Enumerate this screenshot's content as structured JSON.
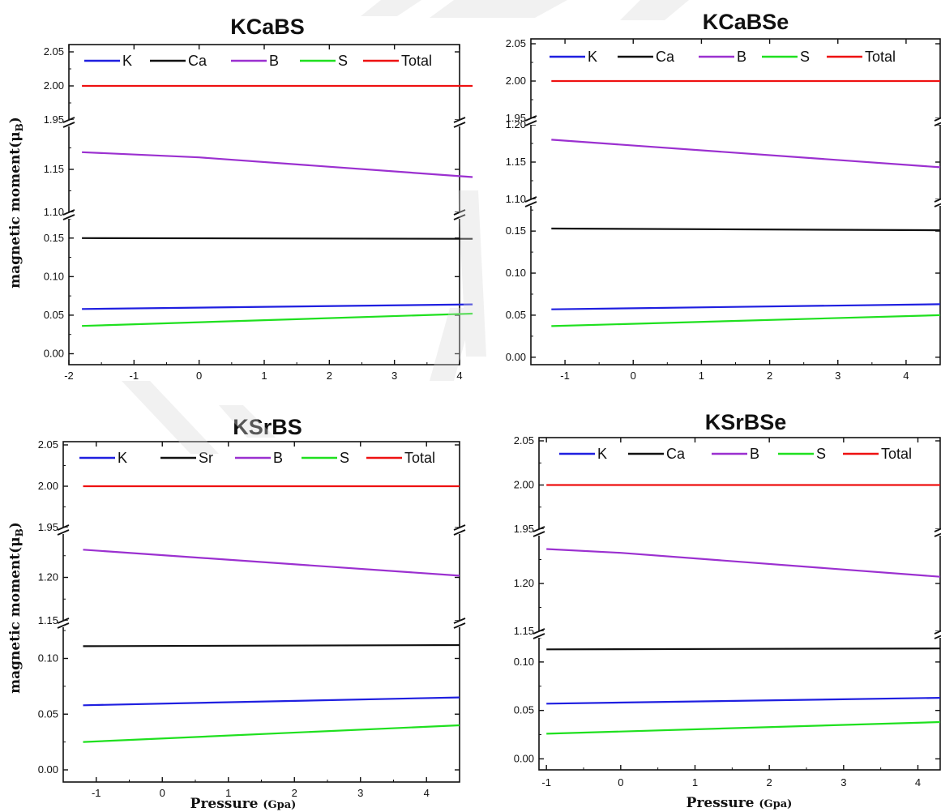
{
  "ylabel": "magnetic moment(μB)",
  "xlabel": "Pressure (Gpa)",
  "colors": {
    "K": "#1f1fe0",
    "Ca": "#111111",
    "Sr": "#111111",
    "B": "#9b30d0",
    "S": "#1fe01f",
    "Total": "#ee1111"
  },
  "chart_data": [
    {
      "type": "line",
      "title": "KCaBS",
      "xlim": [
        -2,
        4
      ],
      "xticks": [
        -2,
        -1,
        0,
        1,
        2,
        3,
        4
      ],
      "x": [
        -1.8,
        4.2
      ],
      "segments": [
        {
          "ylim": [
            1.95,
            2.05
          ],
          "ticks": [
            2.05,
            2.0,
            1.95
          ],
          "tick_labels": [
            "2.05",
            "2.00",
            "1.95"
          ]
        },
        {
          "ylim": [
            1.1,
            1.2
          ],
          "ticks": [
            1.15,
            1.1
          ],
          "tick_labels": [
            "1.15",
            "1.10"
          ]
        },
        {
          "ylim": [
            -0.01,
            0.175
          ],
          "ticks": [
            0.15,
            0.1,
            0.05,
            0.0
          ],
          "tick_labels": [
            "0.15",
            "0.10",
            "0.05",
            "0.00"
          ]
        }
      ],
      "legend": [
        "K",
        "Ca",
        "B",
        "S",
        "Total"
      ],
      "series": [
        {
          "name": "K",
          "x": [
            -1.8,
            4.2
          ],
          "values": [
            0.058,
            0.064
          ]
        },
        {
          "name": "Ca",
          "x": [
            -1.8,
            4.2
          ],
          "values": [
            0.15,
            0.149
          ]
        },
        {
          "name": "B",
          "x": [
            -1.8,
            0,
            4.2
          ],
          "values": [
            1.17,
            1.164,
            1.141
          ]
        },
        {
          "name": "S",
          "x": [
            -1.8,
            4.2
          ],
          "values": [
            0.036,
            0.052
          ]
        },
        {
          "name": "Total",
          "x": [
            -1.8,
            4.2
          ],
          "values": [
            2.0,
            2.0
          ]
        }
      ]
    },
    {
      "type": "line",
      "title": "KCaBSe",
      "xlim": [
        -1.5,
        4.5
      ],
      "xticks": [
        -1,
        0,
        1,
        2,
        3,
        4
      ],
      "x": [
        -1.2,
        4.5
      ],
      "segments": [
        {
          "ylim": [
            1.95,
            2.05
          ],
          "ticks": [
            2.05,
            2.0,
            1.95
          ],
          "tick_labels": [
            "2.05",
            "2.00",
            "1.95"
          ]
        },
        {
          "ylim": [
            1.1,
            1.2
          ],
          "ticks": [
            1.2,
            1.15,
            1.1
          ],
          "tick_labels": [
            "1.20",
            "1.15",
            "1.10"
          ]
        },
        {
          "ylim": [
            -0.005,
            0.18
          ],
          "ticks": [
            0.15,
            0.1,
            0.05,
            0.0
          ],
          "tick_labels": [
            "0.15",
            "0.10",
            "0.05",
            "0.00"
          ]
        }
      ],
      "legend": [
        "K",
        "Ca",
        "B",
        "S",
        "Total"
      ],
      "series": [
        {
          "name": "K",
          "x": [
            -1.2,
            4.5
          ],
          "values": [
            0.057,
            0.063
          ]
        },
        {
          "name": "Ca",
          "x": [
            -1.2,
            4.5
          ],
          "values": [
            0.153,
            0.151
          ]
        },
        {
          "name": "B",
          "x": [
            -1.2,
            4.5
          ],
          "values": [
            1.18,
            1.143
          ]
        },
        {
          "name": "S",
          "x": [
            -1.2,
            4.5
          ],
          "values": [
            0.037,
            0.05
          ]
        },
        {
          "name": "Total",
          "x": [
            -1.2,
            4.5
          ],
          "values": [
            2.0,
            2.0
          ]
        }
      ]
    },
    {
      "type": "line",
      "title": "KSrBS",
      "xlim": [
        -1.5,
        4.5
      ],
      "xticks": [
        -1,
        0,
        1,
        2,
        3,
        4
      ],
      "x": [
        -1.2,
        4.5
      ],
      "segments": [
        {
          "ylim": [
            1.95,
            2.05
          ],
          "ticks": [
            2.05,
            2.0,
            1.95
          ],
          "tick_labels": [
            "2.05",
            "2.00",
            "1.95"
          ]
        },
        {
          "ylim": [
            1.15,
            1.25
          ],
          "ticks": [
            1.2,
            1.15
          ],
          "tick_labels": [
            "1.20",
            "1.15"
          ]
        },
        {
          "ylim": [
            -0.008,
            0.128
          ],
          "ticks": [
            0.1,
            0.05,
            0.0
          ],
          "tick_labels": [
            "0.10",
            "0.05",
            "0.00"
          ]
        }
      ],
      "legend": [
        "K",
        "Sr",
        "B",
        "S",
        "Total"
      ],
      "series": [
        {
          "name": "K",
          "x": [
            -1.2,
            4.5
          ],
          "values": [
            0.058,
            0.065
          ]
        },
        {
          "name": "Sr",
          "x": [
            -1.2,
            4.5
          ],
          "values": [
            0.111,
            0.112
          ]
        },
        {
          "name": "B",
          "x": [
            -1.2,
            4.5
          ],
          "values": [
            1.232,
            1.202
          ]
        },
        {
          "name": "S",
          "x": [
            -1.2,
            4.5
          ],
          "values": [
            0.025,
            0.04
          ]
        },
        {
          "name": "Total",
          "x": [
            -1.2,
            4.5
          ],
          "values": [
            2.0,
            2.0
          ]
        }
      ]
    },
    {
      "type": "line",
      "title": "KSrBSe",
      "xlim": [
        -1.1,
        4.3
      ],
      "xticks": [
        -1,
        0,
        1,
        2,
        3,
        4
      ],
      "x": [
        -1.0,
        4.3
      ],
      "segments": [
        {
          "ylim": [
            1.95,
            2.05
          ],
          "ticks": [
            2.05,
            2.0,
            1.95
          ],
          "tick_labels": [
            "2.05",
            "2.00",
            "1.95"
          ]
        },
        {
          "ylim": [
            1.15,
            1.25
          ],
          "ticks": [
            1.2,
            1.15
          ],
          "tick_labels": [
            "1.20",
            "1.15"
          ]
        },
        {
          "ylim": [
            -0.008,
            0.125
          ],
          "ticks": [
            0.1,
            0.05,
            0.0
          ],
          "tick_labels": [
            "0.10",
            "0.05",
            "0.00"
          ]
        }
      ],
      "legend": [
        "K",
        "Ca",
        "B",
        "S",
        "Total"
      ],
      "series": [
        {
          "name": "K",
          "x": [
            -1.0,
            4.3
          ],
          "values": [
            0.057,
            0.063
          ]
        },
        {
          "name": "Ca",
          "x": [
            -1.0,
            4.3
          ],
          "values": [
            0.113,
            0.114
          ]
        },
        {
          "name": "B",
          "x": [
            -1.0,
            0.0,
            4.3
          ],
          "values": [
            1.236,
            1.232,
            1.207
          ]
        },
        {
          "name": "S",
          "x": [
            -1.0,
            4.3
          ],
          "values": [
            0.026,
            0.038
          ]
        },
        {
          "name": "Total",
          "x": [
            -1.0,
            4.3
          ],
          "values": [
            2.0,
            2.0
          ]
        }
      ]
    }
  ]
}
